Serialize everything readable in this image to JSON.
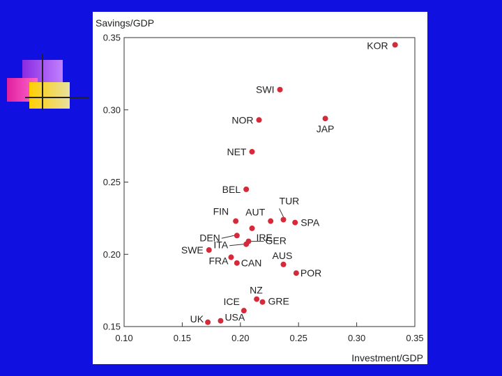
{
  "slide": {
    "background": "#1010e0",
    "decoration": [
      "magenta-square",
      "purple-square",
      "yellow-square",
      "cross-lines"
    ]
  },
  "chart_data": {
    "type": "scatter",
    "xlabel": "Investment/GDP",
    "ylabel": "Savings/GDP",
    "xlim": [
      0.1,
      0.35
    ],
    "ylim": [
      0.15,
      0.35
    ],
    "x_ticks": [
      "0.10",
      "0.15",
      "0.20",
      "0.25",
      "0.30",
      "0.35"
    ],
    "y_ticks": [
      "0.15",
      "0.20",
      "0.25",
      "0.30",
      "0.35"
    ],
    "point_color": "#d42a3a",
    "grid": false,
    "points": [
      {
        "label": "KOR",
        "x": 0.333,
        "y": 0.345
      },
      {
        "label": "SWI",
        "x": 0.234,
        "y": 0.314
      },
      {
        "label": "NOR",
        "x": 0.216,
        "y": 0.293
      },
      {
        "label": "JAP",
        "x": 0.273,
        "y": 0.294
      },
      {
        "label": "NET",
        "x": 0.21,
        "y": 0.271
      },
      {
        "label": "BEL",
        "x": 0.205,
        "y": 0.245
      },
      {
        "label": "TUR",
        "x": 0.237,
        "y": 0.224
      },
      {
        "label": "SPA",
        "x": 0.247,
        "y": 0.222
      },
      {
        "label": "FIN",
        "x": 0.196,
        "y": 0.223
      },
      {
        "label": "AUT",
        "x": 0.226,
        "y": 0.223
      },
      {
        "label": "IRE",
        "x": 0.21,
        "y": 0.218
      },
      {
        "label": "DEN",
        "x": 0.197,
        "y": 0.213
      },
      {
        "label": "ITA",
        "x": 0.205,
        "y": 0.207
      },
      {
        "label": "GER",
        "x": 0.207,
        "y": 0.209
      },
      {
        "label": "SWE",
        "x": 0.173,
        "y": 0.203
      },
      {
        "label": "FRA",
        "x": 0.192,
        "y": 0.198
      },
      {
        "label": "CAN",
        "x": 0.197,
        "y": 0.194
      },
      {
        "label": "AUS",
        "x": 0.237,
        "y": 0.193
      },
      {
        "label": "POR",
        "x": 0.248,
        "y": 0.187
      },
      {
        "label": "NZ",
        "x": 0.214,
        "y": 0.169
      },
      {
        "label": "GRE",
        "x": 0.219,
        "y": 0.167
      },
      {
        "label": "ICE",
        "x": 0.203,
        "y": 0.161
      },
      {
        "label": "USA",
        "x": 0.183,
        "y": 0.154
      },
      {
        "label": "UK",
        "x": 0.172,
        "y": 0.153
      }
    ]
  }
}
